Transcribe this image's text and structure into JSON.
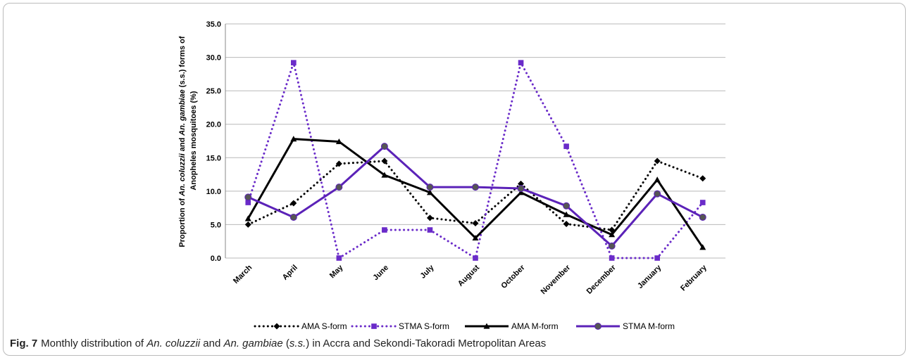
{
  "chart_data": {
    "type": "line",
    "ylabel": [
      [
        "Proportion of ",
        "An. coluzzii",
        " and ",
        "An. gambiae",
        " (s.s.) forms of"
      ],
      [
        "Anopheles mosquitoes (%)"
      ]
    ],
    "categories": [
      "March",
      "April",
      "May",
      "June",
      "July",
      "August",
      "October",
      "November",
      "December",
      "January",
      "February"
    ],
    "series": [
      {
        "name": "AMA S-form",
        "color": "#000000",
        "line_style": "dotted",
        "marker": "diamond",
        "values": [
          5.0,
          8.2,
          14.1,
          14.5,
          6.0,
          5.2,
          11.1,
          5.1,
          4.2,
          14.5,
          11.9
        ]
      },
      {
        "name": "STMA S-form",
        "color": "#6a2bc9",
        "line_style": "dotted",
        "marker": "square",
        "values": [
          8.3,
          29.2,
          0,
          4.2,
          4.2,
          0,
          29.2,
          16.7,
          0,
          0,
          8.3
        ]
      },
      {
        "name": "AMA M-form",
        "color": "#000000",
        "line_style": "solid",
        "marker": "triangle",
        "values": [
          5.9,
          17.8,
          17.4,
          12.4,
          9.8,
          3.0,
          9.8,
          6.5,
          3.5,
          11.7,
          1.6
        ]
      },
      {
        "name": "STMA M-form",
        "color": "#5b22b8",
        "line_style": "solid",
        "marker": "circle",
        "values": [
          9.1,
          6.1,
          10.6,
          16.7,
          10.6,
          10.6,
          10.4,
          7.8,
          1.8,
          9.6,
          6.1
        ]
      }
    ],
    "ylim": [
      0,
      35
    ],
    "yticks": [
      {
        "value": 0,
        "label": "0.0"
      },
      {
        "value": 5,
        "label": "5.0"
      },
      {
        "value": 10,
        "label": "10.0"
      },
      {
        "value": 15,
        "label": "15.0"
      },
      {
        "value": 20,
        "label": "20.0"
      },
      {
        "value": 25,
        "label": "25.0"
      },
      {
        "value": 30,
        "label": "30.0"
      },
      {
        "value": 35,
        "label": "35.0"
      }
    ],
    "grid": true,
    "legend": "bottom"
  },
  "caption": {
    "label": "Fig. 7",
    "text": [
      "Monthly distribution of ",
      "An. coluzzii",
      " and ",
      "An. gambiae",
      " (",
      "s.s.",
      ") in Accra and Sekondi-Takoradi Metropolitan Areas"
    ]
  }
}
